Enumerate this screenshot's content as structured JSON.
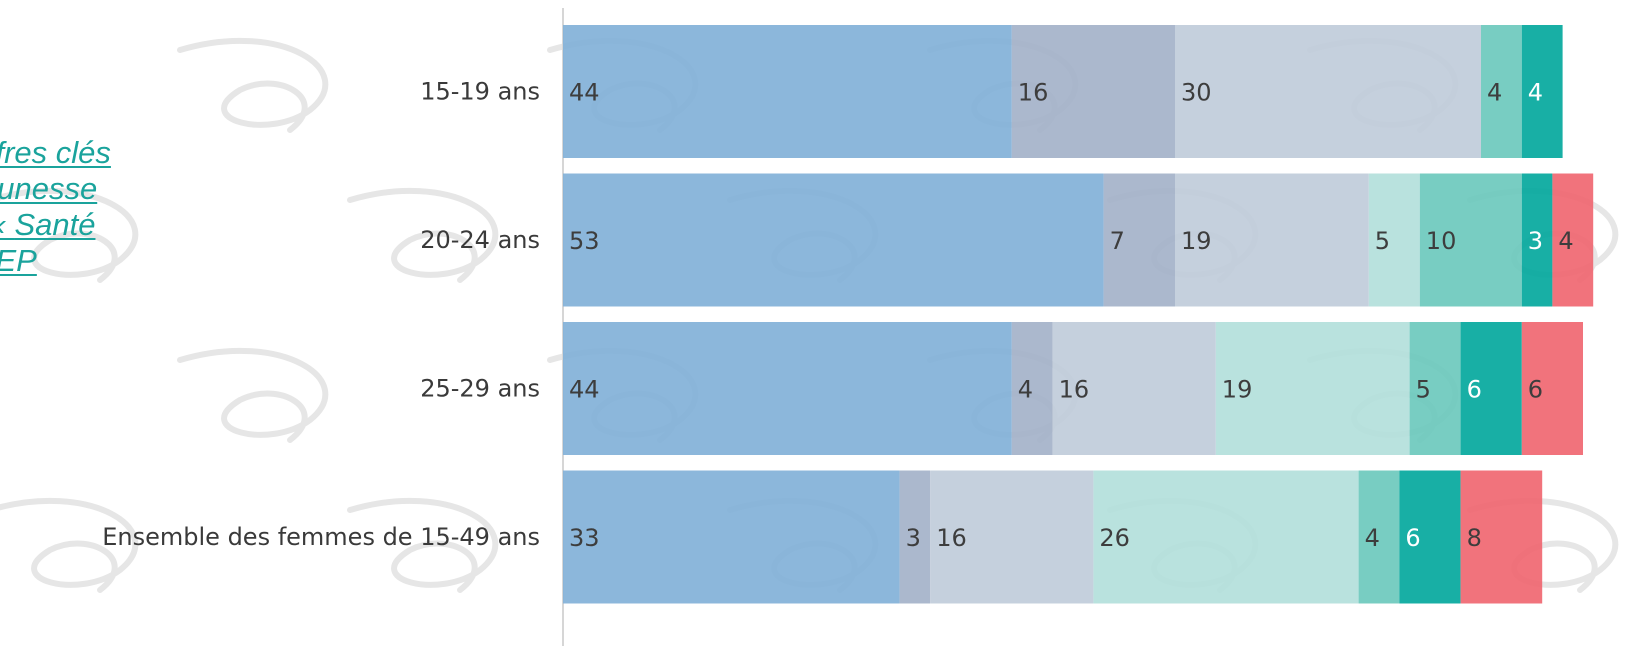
{
  "side_link": {
    "lines": [
      "iffres clés",
      "eunesse",
      "Santé »,",
      "JEP"
    ]
  },
  "colors": {
    "segments": [
      "#82b1d8",
      "#a4b2c9",
      "#c0ccda",
      "#b3dfdb",
      "#6dc9bd",
      "#04a89d",
      "#f06771"
    ],
    "label_dark": "#3d3d3d",
    "label_light": "#ffffff",
    "axis": "#d6d6d6",
    "watermark": "#e6e6e6"
  },
  "chart_data": {
    "type": "bar",
    "orientation": "horizontal",
    "stacked": true,
    "categories": [
      "15-19 ans",
      "20-24 ans",
      "25-29 ans",
      "Ensemble des femmes de 15-49 ans"
    ],
    "series": [
      {
        "values": [
          44,
          53,
          44,
          33
        ]
      },
      {
        "values": [
          16,
          7,
          4,
          3
        ]
      },
      {
        "values": [
          30,
          19,
          16,
          16
        ]
      },
      {
        "values": [
          0,
          5,
          19,
          26
        ]
      },
      {
        "values": [
          4,
          10,
          5,
          4
        ]
      },
      {
        "values": [
          4,
          3,
          6,
          6
        ]
      },
      {
        "values": [
          0,
          4,
          6,
          8
        ]
      }
    ],
    "xlim": [
      0,
      100
    ],
    "title": "",
    "xlabel": "",
    "ylabel": ""
  }
}
